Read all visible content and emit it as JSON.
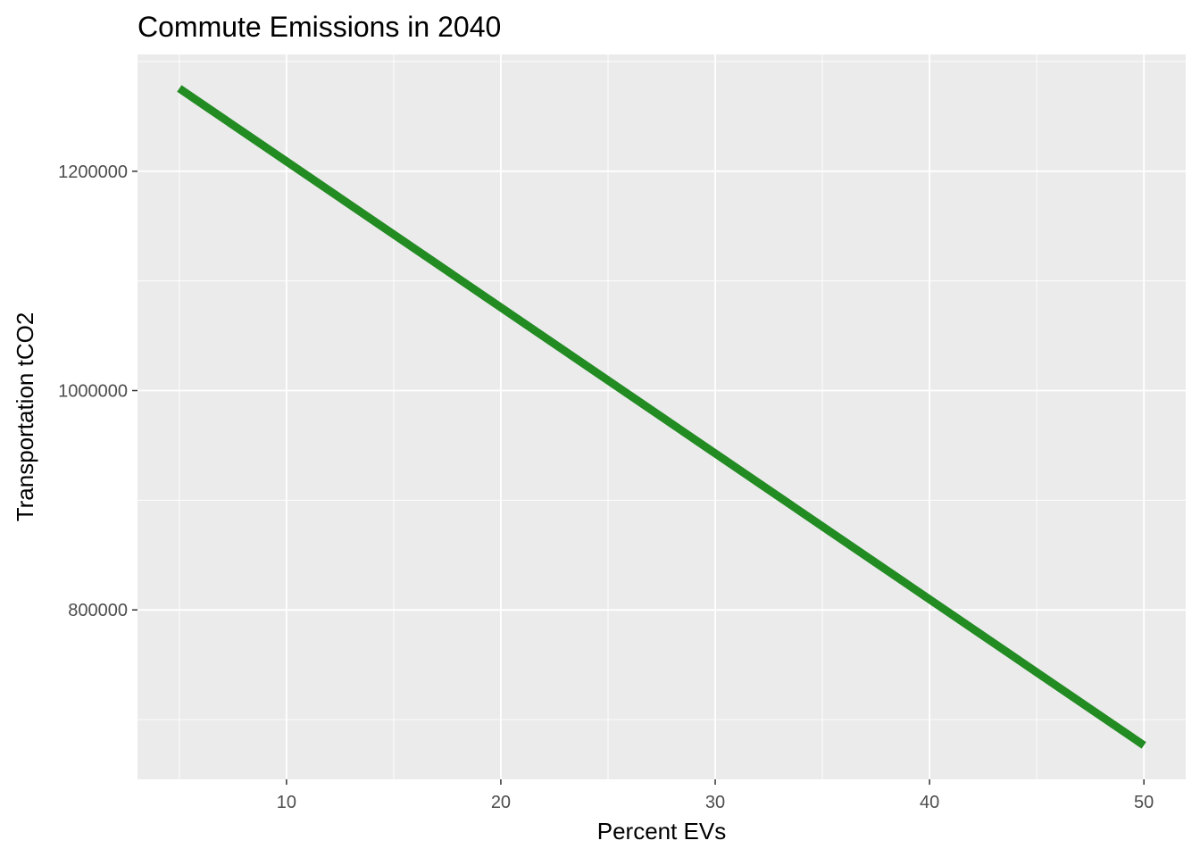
{
  "chart_data": {
    "type": "line",
    "title": "Commute Emissions in 2040",
    "xlabel": "Percent EVs",
    "ylabel": "Transportation tCO2",
    "x_ticks": [
      10,
      20,
      30,
      40,
      50
    ],
    "x_tick_labels": [
      "10",
      "20",
      "30",
      "40",
      "50"
    ],
    "y_ticks": [
      800000,
      1000000,
      1200000
    ],
    "y_tick_labels": [
      "800000",
      "1000000",
      "1200000"
    ],
    "xlim": [
      3.05,
      51.95
    ],
    "ylim": [
      645500,
      1306500
    ],
    "grid": true,
    "series": [
      {
        "color": "#228B22",
        "x": [
          5,
          50
        ],
        "y": [
          1275500,
          676500
        ]
      }
    ]
  }
}
